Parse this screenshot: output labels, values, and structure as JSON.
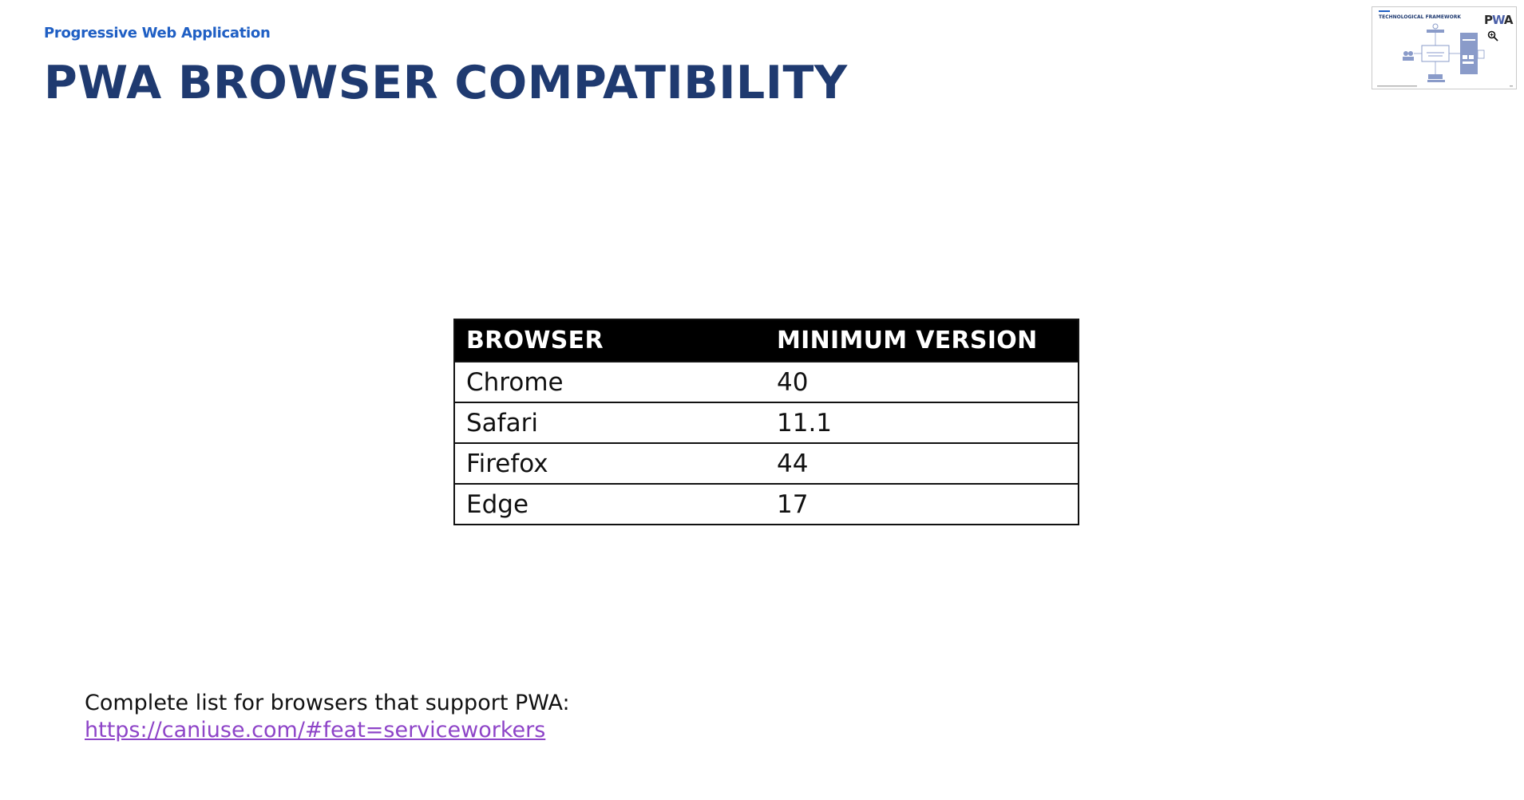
{
  "header": {
    "subtitle": "Progressive Web Application",
    "title": "PWA BROWSER COMPATIBILITY"
  },
  "thumbnail": {
    "heading": "TECHNOLOGICAL FRAMEWORK",
    "logo_p": "P",
    "logo_w": "W",
    "logo_a": "A",
    "zoom_icon": "zoom-in-icon"
  },
  "table": {
    "headers": [
      "BROWSER",
      "MINIMUM VERSION"
    ],
    "rows": [
      [
        "Chrome",
        "40"
      ],
      [
        "Safari",
        "11.1"
      ],
      [
        "Firefox",
        "44"
      ],
      [
        "Edge",
        "17"
      ]
    ]
  },
  "footer": {
    "text": "Complete list for browsers that support PWA:",
    "link": "https://caniuse.com/#feat=serviceworkers"
  },
  "colors": {
    "subtitle": "#1f5fc4",
    "title": "#1f3a70",
    "link": "#8e44c8",
    "table_header_bg": "#000000"
  }
}
